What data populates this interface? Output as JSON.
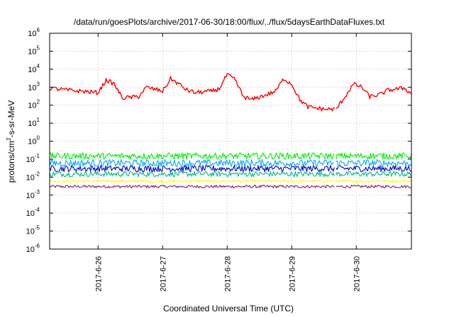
{
  "chart_data": {
    "type": "line",
    "title": "/data/run/goesPlots/archive/2017-06-30/18:00/flux/../flux/5daysEarthDataFluxes.txt",
    "xlabel": "Coordinated Universal Time (UTC)",
    "ylabel": {
      "prefix": "protons/cm",
      "sup": "2",
      "suffix": "-s-sr-MeV"
    },
    "yscale": "log",
    "ylim": [
      1e-06,
      1000000.0
    ],
    "xlim": [
      "2017-06-25 06:00",
      "2017-06-30 20:30"
    ],
    "grid": true,
    "y_ticks": [
      {
        "value": 1e-06,
        "base": "10",
        "exp": "-6"
      },
      {
        "value": 1e-05,
        "base": "10",
        "exp": "-5"
      },
      {
        "value": 0.0001,
        "base": "10",
        "exp": "-4"
      },
      {
        "value": 0.001,
        "base": "10",
        "exp": "-3"
      },
      {
        "value": 0.01,
        "base": "10",
        "exp": "-2"
      },
      {
        "value": 0.1,
        "base": "10",
        "exp": "-1"
      },
      {
        "value": 1,
        "base": "10",
        "exp": "0"
      },
      {
        "value": 10,
        "base": "10",
        "exp": "1"
      },
      {
        "value": 100,
        "base": "10",
        "exp": "2"
      },
      {
        "value": 1000,
        "base": "10",
        "exp": "3"
      },
      {
        "value": 10000,
        "base": "10",
        "exp": "4"
      },
      {
        "value": 100000,
        "base": "10",
        "exp": "5"
      },
      {
        "value": 1000000,
        "base": "10",
        "exp": "6"
      }
    ],
    "x_ticks": [
      "2017-6-26",
      "2017-6-27",
      "2017-6-28",
      "2017-6-29",
      "2017-6-30"
    ],
    "data_gap": [
      "2017-06-29 16:00",
      "2017-06-29 16:30"
    ],
    "series": [
      {
        "color": "#ff0000",
        "noise": 0.12,
        "points": [
          [
            "2017-06-25 06:00",
            900
          ],
          [
            "2017-06-25 12:00",
            700
          ],
          [
            "2017-06-25 18:00",
            600
          ],
          [
            "2017-06-26 00:00",
            500
          ],
          [
            "2017-06-26 03:00",
            2500
          ],
          [
            "2017-06-26 06:00",
            1500
          ],
          [
            "2017-06-26 09:00",
            250
          ],
          [
            "2017-06-26 15:00",
            300
          ],
          [
            "2017-06-26 18:00",
            1000
          ],
          [
            "2017-06-27 00:00",
            600
          ],
          [
            "2017-06-27 03:00",
            3000
          ],
          [
            "2017-06-27 06:00",
            1500
          ],
          [
            "2017-06-27 09:00",
            700
          ],
          [
            "2017-06-27 12:00",
            500
          ],
          [
            "2017-06-27 18:00",
            600
          ],
          [
            "2017-06-27 21:00",
            800
          ],
          [
            "2017-06-28 00:00",
            5000
          ],
          [
            "2017-06-28 03:00",
            2500
          ],
          [
            "2017-06-28 06:00",
            300
          ],
          [
            "2017-06-28 09:00",
            200
          ],
          [
            "2017-06-28 15:00",
            400
          ],
          [
            "2017-06-28 18:00",
            600
          ],
          [
            "2017-06-28 21:00",
            3000
          ],
          [
            "2017-06-29 00:00",
            1500
          ],
          [
            "2017-06-29 03:00",
            200
          ],
          [
            "2017-06-29 06:00",
            80
          ],
          [
            "2017-06-29 12:00",
            60
          ],
          [
            "2017-06-29 16:00",
            60
          ],
          [
            "2017-06-29 16:30",
            60
          ],
          [
            "2017-06-29 19:00",
            200
          ],
          [
            "2017-06-29 23:00",
            1500
          ],
          [
            "2017-06-30 02:00",
            1000
          ],
          [
            "2017-06-30 05:00",
            300
          ],
          [
            "2017-06-30 09:00",
            400
          ],
          [
            "2017-06-30 12:00",
            700
          ],
          [
            "2017-06-30 18:00",
            900
          ],
          [
            "2017-06-30 20:30",
            400
          ]
        ]
      },
      {
        "color": "#00ee00",
        "level": 0.15,
        "noise": 0.18,
        "points": []
      },
      {
        "color": "#00aaff",
        "level": 0.06,
        "noise": 0.2,
        "points": []
      },
      {
        "color": "#0000cc",
        "level": 0.03,
        "noise": 0.18,
        "points": []
      },
      {
        "color": "#00bb88",
        "level": 0.015,
        "noise": 0.15,
        "points": []
      },
      {
        "color": "#ffff00",
        "level": 0.006,
        "noise": 0.08,
        "points": []
      },
      {
        "color": "#8b1a6b",
        "level": 0.003,
        "noise": 0.08,
        "points": []
      }
    ]
  }
}
